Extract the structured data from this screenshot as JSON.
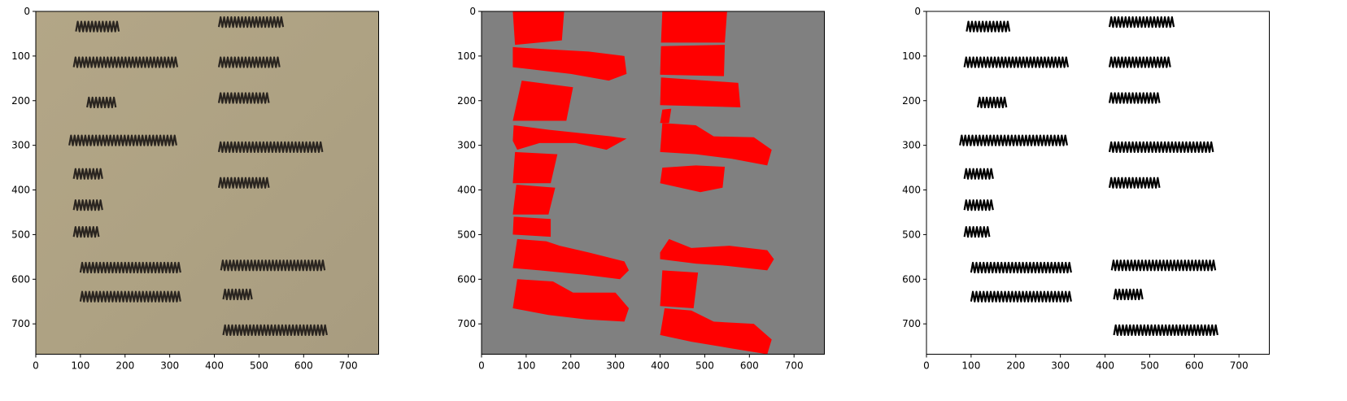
{
  "chart_data": [
    {
      "type": "image",
      "image": "scan",
      "xlim": [
        0,
        768
      ],
      "ylim": [
        768,
        0
      ],
      "xticks": [
        0,
        100,
        200,
        300,
        400,
        500,
        600,
        700
      ],
      "yticks": [
        0,
        100,
        200,
        300,
        400,
        500,
        600,
        700
      ]
    },
    {
      "type": "image",
      "image": "mask",
      "xlim": [
        0,
        768
      ],
      "ylim": [
        768,
        0
      ],
      "xticks": [
        0,
        100,
        200,
        300,
        400,
        500,
        600,
        700
      ],
      "yticks": [
        0,
        100,
        200,
        300,
        400,
        500,
        600,
        700
      ]
    },
    {
      "type": "image",
      "image": "binary",
      "xlim": [
        0,
        768
      ],
      "ylim": [
        768,
        0
      ],
      "xticks": [
        0,
        100,
        200,
        300,
        400,
        500,
        600,
        700
      ],
      "yticks": [
        0,
        100,
        200,
        300,
        400,
        500,
        600,
        700
      ]
    }
  ]
}
